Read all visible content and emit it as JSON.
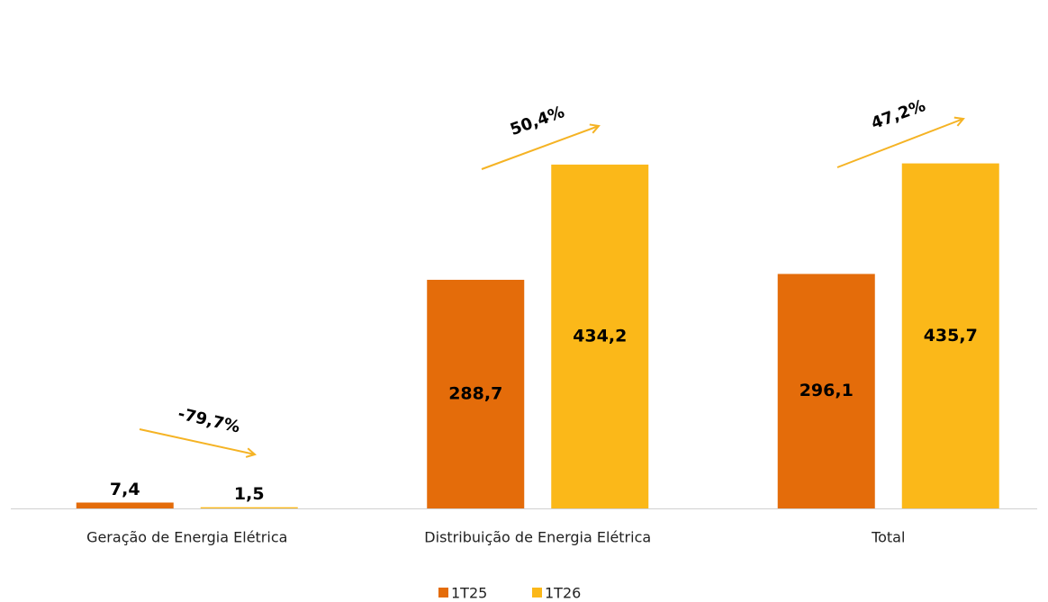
{
  "chart_data": {
    "type": "bar",
    "categories": [
      "Geração de Energia Elétrica",
      "Distribuição de Energia Elétrica",
      "Total"
    ],
    "series": [
      {
        "name": "1T25",
        "color": "#e46c0a",
        "values": [
          7.4,
          288.7,
          296.1
        ],
        "value_labels": [
          "7,4",
          "288,7",
          "296,1"
        ]
      },
      {
        "name": "1T26",
        "color": "#fbb819",
        "values": [
          1.5,
          434.2,
          435.7
        ],
        "value_labels": [
          "1,5",
          "434,2",
          "435,7"
        ]
      }
    ],
    "annotations": [
      "-79,7%",
      "50,4%",
      "47,2%"
    ],
    "ylim": [
      0,
      500
    ],
    "legend": "bottom"
  }
}
